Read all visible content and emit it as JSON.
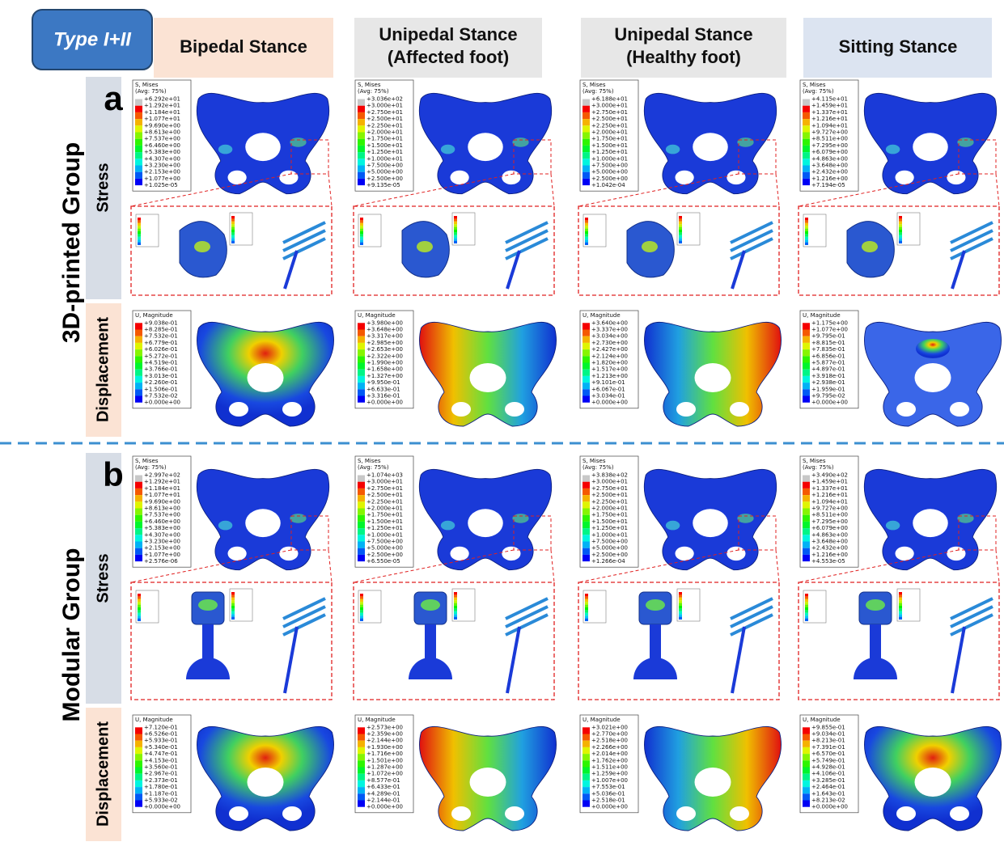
{
  "header": {
    "badge": "Type I+II",
    "columns": [
      "Bipedal Stance",
      "Unipedal Stance\n(Affected foot)",
      "Unipedal Stance\n(Healthy foot)",
      "Sitting Stance"
    ]
  },
  "groups": [
    {
      "letter": "a",
      "name": "3D-printed Group",
      "rows": [
        {
          "label": "Stress",
          "legend": [
            "S, Mises",
            "(Avg: 75%)"
          ],
          "panels": [
            [
              "+6.292e+01",
              "+1.292e+01",
              "+1.184e+01",
              "+1.077e+01",
              "+9.690e+00",
              "+8.613e+00",
              "+7.537e+00",
              "+6.460e+00",
              "+5.383e+00",
              "+4.307e+00",
              "+3.230e+00",
              "+2.153e+00",
              "+1.077e+00",
              "+1.025e-05"
            ],
            [
              "+3.036e+02",
              "+3.000e+01",
              "+2.750e+01",
              "+2.500e+01",
              "+2.250e+01",
              "+2.000e+01",
              "+1.750e+01",
              "+1.500e+01",
              "+1.250e+01",
              "+1.000e+01",
              "+7.500e+00",
              "+5.000e+00",
              "+2.500e+00",
              "+9.135e-05"
            ],
            [
              "+6.188e+01",
              "+3.000e+01",
              "+2.750e+01",
              "+2.500e+01",
              "+2.250e+01",
              "+2.000e+01",
              "+1.750e+01",
              "+1.500e+01",
              "+1.250e+01",
              "+1.000e+01",
              "+7.500e+00",
              "+5.000e+00",
              "+2.500e+00",
              "+1.042e-04"
            ],
            [
              "+4.115e+01",
              "+1.459e+01",
              "+1.337e+01",
              "+1.216e+01",
              "+1.094e+01",
              "+9.727e+00",
              "+8.511e+00",
              "+7.295e+00",
              "+6.079e+00",
              "+4.863e+00",
              "+3.648e+00",
              "+2.432e+00",
              "+1.216e+00",
              "+7.194e-05"
            ]
          ]
        },
        {
          "label": "Displacement",
          "legend": [
            "U, Magnitude"
          ],
          "panels": [
            [
              "+9.038e-01",
              "+8.285e-01",
              "+7.532e-01",
              "+6.779e-01",
              "+6.026e-01",
              "+5.272e-01",
              "+4.519e-01",
              "+3.766e-01",
              "+3.013e-01",
              "+2.260e-01",
              "+1.506e-01",
              "+7.532e-02",
              "+0.000e+00"
            ],
            [
              "+3.980e+00",
              "+3.648e+00",
              "+3.317e+00",
              "+2.985e+00",
              "+2.653e+00",
              "+2.322e+00",
              "+1.990e+00",
              "+1.658e+00",
              "+1.327e+00",
              "+9.950e-01",
              "+6.633e-01",
              "+3.316e-01",
              "+0.000e+00"
            ],
            [
              "+3.640e+00",
              "+3.337e+00",
              "+3.034e+00",
              "+2.730e+00",
              "+2.427e+00",
              "+2.124e+00",
              "+1.820e+00",
              "+1.517e+00",
              "+1.213e+00",
              "+9.101e-01",
              "+6.067e-01",
              "+3.034e-01",
              "+0.000e+00"
            ],
            [
              "+1.175e+00",
              "+1.077e+00",
              "+9.795e-01",
              "+8.815e-01",
              "+7.835e-01",
              "+6.856e-01",
              "+5.877e-01",
              "+4.897e-01",
              "+3.918e-01",
              "+2.938e-01",
              "+1.959e-01",
              "+9.795e-02",
              "+0.000e+00"
            ]
          ]
        }
      ]
    },
    {
      "letter": "b",
      "name": "Modular Group",
      "rows": [
        {
          "label": "Stress",
          "legend": [
            "S, Mises",
            "(Avg: 75%)"
          ],
          "panels": [
            [
              "+2.997e+02",
              "+1.292e+01",
              "+1.184e+01",
              "+1.077e+01",
              "+9.690e+00",
              "+8.613e+00",
              "+7.537e+00",
              "+6.460e+00",
              "+5.383e+00",
              "+4.307e+00",
              "+3.230e+00",
              "+2.153e+00",
              "+1.077e+00",
              "+2.576e-06"
            ],
            [
              "+1.074e+03",
              "+3.000e+01",
              "+2.750e+01",
              "+2.500e+01",
              "+2.250e+01",
              "+2.000e+01",
              "+1.750e+01",
              "+1.500e+01",
              "+1.250e+01",
              "+1.000e+01",
              "+7.500e+00",
              "+5.000e+00",
              "+2.500e+00",
              "+6.550e-05"
            ],
            [
              "+3.838e+02",
              "+3.000e+01",
              "+2.750e+01",
              "+2.500e+01",
              "+2.250e+01",
              "+2.000e+01",
              "+1.750e+01",
              "+1.500e+01",
              "+1.250e+01",
              "+1.000e+01",
              "+7.500e+00",
              "+5.000e+00",
              "+2.500e+00",
              "+1.266e-04"
            ],
            [
              "+3.490e+02",
              "+1.459e+01",
              "+1.337e+01",
              "+1.216e+01",
              "+1.094e+01",
              "+9.727e+00",
              "+8.511e+00",
              "+7.295e+00",
              "+6.079e+00",
              "+4.863e+00",
              "+3.648e+00",
              "+2.432e+00",
              "+1.216e+00",
              "+4.553e-05"
            ]
          ]
        },
        {
          "label": "Displacement",
          "legend": [
            "U, Magnitude"
          ],
          "panels": [
            [
              "+7.120e-01",
              "+6.526e-01",
              "+5.933e-01",
              "+5.340e-01",
              "+4.747e-01",
              "+4.153e-01",
              "+3.560e-01",
              "+2.967e-01",
              "+2.373e-01",
              "+1.780e-01",
              "+1.187e-01",
              "+5.933e-02",
              "+0.000e+00"
            ],
            [
              "+2.573e+00",
              "+2.359e+00",
              "+2.144e+00",
              "+1.930e+00",
              "+1.716e+00",
              "+1.501e+00",
              "+1.287e+00",
              "+1.072e+00",
              "+8.577e-01",
              "+6.433e-01",
              "+4.289e-01",
              "+2.144e-01",
              "+0.000e+00"
            ],
            [
              "+3.021e+00",
              "+2.770e+00",
              "+2.518e+00",
              "+2.266e+00",
              "+2.014e+00",
              "+1.762e+00",
              "+1.511e+00",
              "+1.259e+00",
              "+1.007e+00",
              "+7.553e-01",
              "+5.036e-01",
              "+2.518e-01",
              "+0.000e+00"
            ],
            [
              "+9.855e-01",
              "+9.034e-01",
              "+8.213e-01",
              "+7.391e-01",
              "+6.570e-01",
              "+5.749e-01",
              "+4.928e-01",
              "+4.106e-01",
              "+3.285e-01",
              "+2.464e-01",
              "+1.643e-01",
              "+8.213e-02",
              "+0.000e+00"
            ]
          ]
        }
      ]
    }
  ]
}
